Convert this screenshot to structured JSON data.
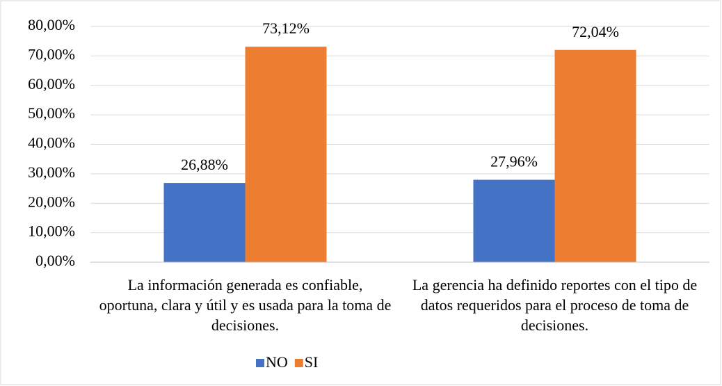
{
  "chart_data": {
    "type": "bar",
    "categories": [
      "La información generada es confiable, oportuna, clara y útil y es usada para la toma de decisiones.",
      "La gerencia ha definido reportes con el tipo de datos requeridos para el proceso de toma de decisiones."
    ],
    "series": [
      {
        "name": "NO",
        "color": "#4472c4",
        "values": [
          26.88,
          27.96
        ],
        "value_labels": [
          "26,88%",
          "27,96%"
        ]
      },
      {
        "name": "SI",
        "color": "#ed7d31",
        "values": [
          73.12,
          72.04
        ],
        "value_labels": [
          "73,12%",
          "72,04%"
        ]
      }
    ],
    "ylim": [
      0,
      80
    ],
    "yticks": [
      {
        "value": 0,
        "label": "0,00%"
      },
      {
        "value": 10,
        "label": "10,00%"
      },
      {
        "value": 20,
        "label": "20,00%"
      },
      {
        "value": 30,
        "label": "30,00%"
      },
      {
        "value": 40,
        "label": "40,00%"
      },
      {
        "value": 50,
        "label": "50,00%"
      },
      {
        "value": 60,
        "label": "60,00%"
      },
      {
        "value": 70,
        "label": "70,00%"
      },
      {
        "value": 80,
        "label": "80,00%"
      }
    ],
    "grid": true,
    "legend": "bottom"
  }
}
